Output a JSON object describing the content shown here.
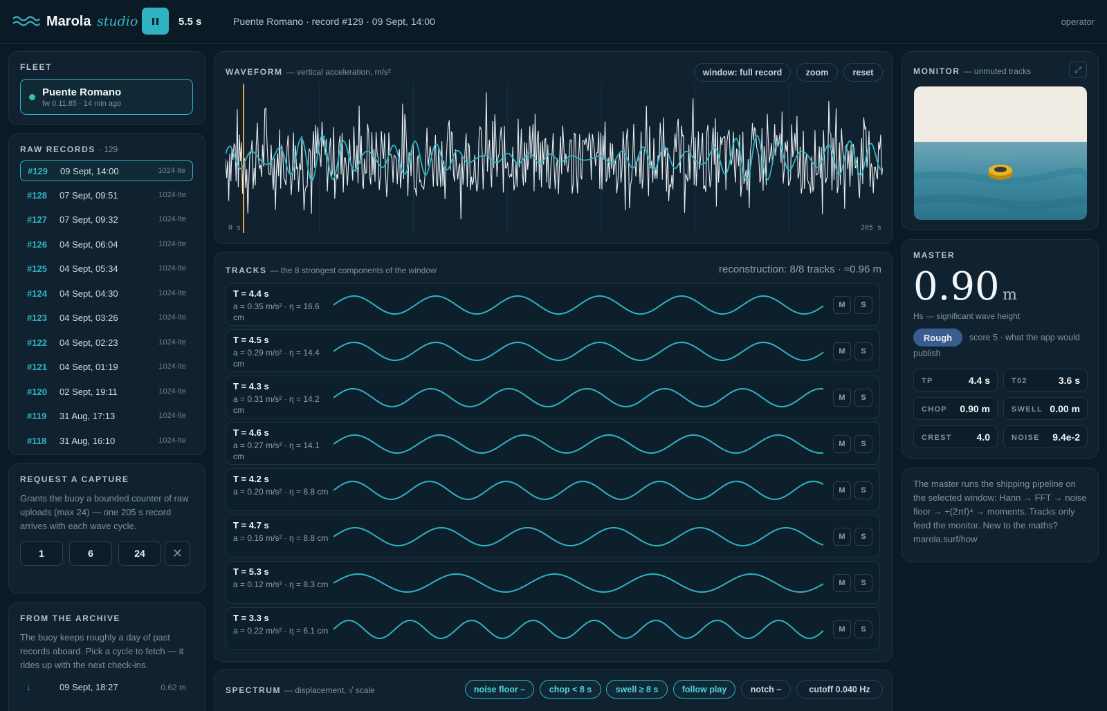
{
  "app": {
    "brand": "Marola",
    "brand_sub": "studio",
    "play_time": "5.5 s",
    "record_info": "Puente Romano · record #129 · 09 Sept, 14:00",
    "user": "operator"
  },
  "fleet": {
    "title": "FLEET",
    "buoy_name": "Puente Romano",
    "buoy_meta": "fw 0.11.85 · 14 min ago"
  },
  "records": {
    "title": "RAW RECORDS",
    "count": "· 129",
    "items": [
      {
        "id": "#129",
        "date": "09 Sept, 14:00",
        "tag": "1024·lte"
      },
      {
        "id": "#128",
        "date": "07 Sept, 09:51",
        "tag": "1024·lte"
      },
      {
        "id": "#127",
        "date": "07 Sept, 09:32",
        "tag": "1024·lte"
      },
      {
        "id": "#126",
        "date": "04 Sept, 06:04",
        "tag": "1024·lte"
      },
      {
        "id": "#125",
        "date": "04 Sept, 05:34",
        "tag": "1024·lte"
      },
      {
        "id": "#124",
        "date": "04 Sept, 04:30",
        "tag": "1024·lte"
      },
      {
        "id": "#123",
        "date": "04 Sept, 03:26",
        "tag": "1024·lte"
      },
      {
        "id": "#122",
        "date": "04 Sept, 02:23",
        "tag": "1024·lte"
      },
      {
        "id": "#121",
        "date": "04 Sept, 01:19",
        "tag": "1024·lte"
      },
      {
        "id": "#120",
        "date": "02 Sept, 19:11",
        "tag": "1024·lte"
      },
      {
        "id": "#119",
        "date": "31 Aug, 17:13",
        "tag": "1024·lte"
      },
      {
        "id": "#118",
        "date": "31 Aug, 16:10",
        "tag": "1024·lte"
      }
    ]
  },
  "capture": {
    "title": "REQUEST A CAPTURE",
    "description": "Grants the buoy a bounded counter of raw uploads (max 24) — one 205 s record arrives with each wave cycle.",
    "options": [
      "1",
      "6",
      "24"
    ],
    "clear_icon": "✕"
  },
  "archive": {
    "title": "FROM THE ARCHIVE",
    "description": "The buoy keeps roughly a day of past records aboard. Pick a cycle to fetch — it rides up with the next check-ins.",
    "items": [
      {
        "icon": "↓",
        "date": "09 Sept, 18:27",
        "value": "0.62 m"
      }
    ]
  },
  "waveform": {
    "title": "WAVEFORM",
    "subtitle": "— vertical acceleration, m/s²",
    "buttons": [
      "window: full record",
      "zoom",
      "reset"
    ],
    "start_label": "0 s",
    "end_label": "205 s"
  },
  "tracks": {
    "title": "TRACKS",
    "subtitle": "— the 8 strongest components of the window",
    "reconstruction": "reconstruction: 8/8 tracks · ≈0.96 m",
    "mute_label": "M",
    "solo_label": "S",
    "items": [
      {
        "period": "T = 4.4 s",
        "detail": "a = 0.35 m/s² · η = 16.6 cm",
        "cycles": 6
      },
      {
        "period": "T = 4.5 s",
        "detail": "a = 0.29 m/s² · η = 14.4 cm",
        "cycles": 6
      },
      {
        "period": "T = 4.3 s",
        "detail": "a = 0.31 m/s² · η = 14.2 cm",
        "cycles": 6.3
      },
      {
        "period": "T = 4.6 s",
        "detail": "a = 0.27 m/s² · η = 14.1 cm",
        "cycles": 5.8
      },
      {
        "period": "T = 4.2 s",
        "detail": "a = 0.20 m/s² · η = 8.8 cm",
        "cycles": 6.4
      },
      {
        "period": "T = 4.7 s",
        "detail": "a = 0.16 m/s² · η = 8.8 cm",
        "cycles": 5.7
      },
      {
        "period": "T = 5.3 s",
        "detail": "a = 0.12 m/s² · η = 8.3 cm",
        "cycles": 5
      },
      {
        "period": "T = 3.3 s",
        "detail": "a = 0.22 m/s² · η = 6.1 cm",
        "cycles": 8
      }
    ]
  },
  "spectrum": {
    "title": "SPECTRUM",
    "subtitle": "— displacement, √ scale",
    "filters_on": [
      "noise floor –",
      "chop < 8 s",
      "swell ≥ 8 s",
      "follow play"
    ],
    "filters_off": [
      "notch –",
      "cutoff 0.040 Hz"
    ]
  },
  "monitor": {
    "title": "MONITOR",
    "subtitle": "— unmuted tracks",
    "expand_icon": "⤢"
  },
  "master": {
    "title": "MASTER",
    "value": "0.90",
    "unit": "m",
    "caption": "Hs — significant wave height",
    "badge": "Rough",
    "badge_note": "score 5 · what the app would publish",
    "stats": [
      {
        "key": "TP",
        "value": "4.4 s"
      },
      {
        "key": "T02",
        "value": "3.6 s"
      },
      {
        "key": "CHOP",
        "value": "0.90 m"
      },
      {
        "key": "SWELL",
        "value": "0.00 m"
      },
      {
        "key": "CREST",
        "value": "4.0"
      },
      {
        "key": "NOISE",
        "value": "9.4e-2"
      }
    ]
  },
  "notes": {
    "text": "The master runs the shipping pipeline on the selected window: Hann → FFT → noise floor → ÷(2πf)⁴ → moments. Tracks only feed the monitor. New to the maths? marola.surf/how"
  },
  "colors": {
    "accent": "#2fb3c3",
    "playhead": "#f0a33a",
    "badge": "#3a5d8f",
    "live_dot": "#2ecc8f"
  }
}
